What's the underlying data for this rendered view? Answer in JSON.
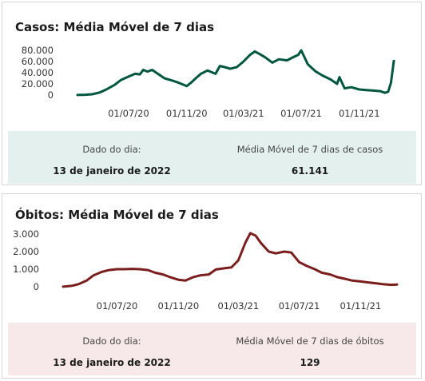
{
  "chart_data": [
    {
      "type": "line",
      "title": "Casos: Média Móvel de 7 dias",
      "color": "#00563f",
      "ylim": [
        0,
        80000
      ],
      "yticks": [
        0,
        20000,
        40000,
        60000,
        80000
      ],
      "ytick_labels": [
        "0",
        "20.000",
        "40.000",
        "60.000",
        "80.000"
      ],
      "xticks": [
        "2020-07-01",
        "2020-11-01",
        "2021-03-01",
        "2021-07-01",
        "2021-11-01"
      ],
      "xtick_labels": [
        "01/07/20",
        "01/11/20",
        "01/03/21",
        "01/07/21",
        "01/11/21"
      ],
      "x": [
        "2020-03-15",
        "2020-04-01",
        "2020-04-15",
        "2020-05-01",
        "2020-05-15",
        "2020-06-01",
        "2020-06-15",
        "2020-07-01",
        "2020-07-15",
        "2020-07-25",
        "2020-08-01",
        "2020-08-10",
        "2020-08-20",
        "2020-09-01",
        "2020-09-15",
        "2020-10-01",
        "2020-10-15",
        "2020-11-01",
        "2020-11-10",
        "2020-11-20",
        "2020-12-01",
        "2020-12-15",
        "2021-01-01",
        "2021-01-10",
        "2021-01-20",
        "2021-02-01",
        "2021-02-15",
        "2021-03-01",
        "2021-03-15",
        "2021-03-25",
        "2021-04-05",
        "2021-04-15",
        "2021-05-01",
        "2021-05-15",
        "2021-06-01",
        "2021-06-15",
        "2021-06-25",
        "2021-07-01",
        "2021-07-15",
        "2021-08-01",
        "2021-08-15",
        "2021-09-01",
        "2021-09-15",
        "2021-09-20",
        "2021-10-01",
        "2021-10-15",
        "2021-11-01",
        "2021-11-15",
        "2021-12-01",
        "2021-12-15",
        "2021-12-25",
        "2022-01-01",
        "2022-01-07",
        "2022-01-13"
      ],
      "values": [
        200,
        600,
        1500,
        4500,
        10000,
        18000,
        27000,
        33000,
        38000,
        37000,
        45000,
        42000,
        45000,
        38000,
        30000,
        26000,
        22000,
        16000,
        22000,
        30000,
        38000,
        44000,
        38000,
        52000,
        50000,
        47000,
        50000,
        60000,
        72000,
        78000,
        73000,
        68000,
        58000,
        64000,
        62000,
        68000,
        72000,
        80000,
        55000,
        42000,
        35000,
        28000,
        20000,
        32000,
        12000,
        14000,
        10000,
        9000,
        8000,
        7000,
        4000,
        6000,
        22000,
        61141
      ]
    },
    {
      "type": "line",
      "title": "Óbitos: Média Móvel de 7 dias",
      "color": "#7a1d1d",
      "ylim": [
        0,
        3000
      ],
      "yticks": [
        0,
        1000,
        2000,
        3000
      ],
      "ytick_labels": [
        "0",
        "1.000",
        "2.000",
        "3.000"
      ],
      "xticks": [
        "2020-07-01",
        "2020-11-01",
        "2021-03-01",
        "2021-07-01",
        "2021-11-01"
      ],
      "xtick_labels": [
        "01/07/20",
        "01/11/20",
        "01/03/21",
        "01/07/21",
        "01/11/21"
      ],
      "x": [
        "2020-03-15",
        "2020-04-01",
        "2020-04-15",
        "2020-05-01",
        "2020-05-15",
        "2020-06-01",
        "2020-06-15",
        "2020-07-01",
        "2020-07-15",
        "2020-08-01",
        "2020-08-15",
        "2020-09-01",
        "2020-09-15",
        "2020-10-01",
        "2020-10-15",
        "2020-11-01",
        "2020-11-15",
        "2020-12-01",
        "2020-12-15",
        "2021-01-01",
        "2021-01-15",
        "2021-02-01",
        "2021-02-15",
        "2021-03-01",
        "2021-03-15",
        "2021-03-25",
        "2021-04-05",
        "2021-04-15",
        "2021-05-01",
        "2021-05-15",
        "2021-06-01",
        "2021-06-15",
        "2021-07-01",
        "2021-07-15",
        "2021-08-01",
        "2021-08-15",
        "2021-09-01",
        "2021-09-15",
        "2021-10-01",
        "2021-10-15",
        "2021-11-01",
        "2021-11-15",
        "2021-12-01",
        "2021-12-15",
        "2022-01-01",
        "2022-01-13"
      ],
      "values": [
        5,
        50,
        150,
        350,
        650,
        850,
        950,
        1000,
        1000,
        1020,
        1000,
        950,
        800,
        700,
        550,
        400,
        350,
        550,
        650,
        700,
        980,
        1050,
        1100,
        1500,
        2500,
        3050,
        2900,
        2500,
        2000,
        1900,
        2000,
        1950,
        1400,
        1200,
        1000,
        800,
        700,
        550,
        450,
        350,
        300,
        250,
        200,
        150,
        110,
        129
      ]
    }
  ],
  "casos": {
    "label_day": "Dado do dia:",
    "label_avg": "Média Móvel de 7 dias de casos",
    "date": "13 de janeiro de 2022",
    "value": "61.141"
  },
  "obitos": {
    "label_day": "Dado do dia:",
    "label_avg": "Média Móvel de 7 dias de óbitos",
    "date": "13 de janeiro de 2022",
    "value": "129"
  }
}
